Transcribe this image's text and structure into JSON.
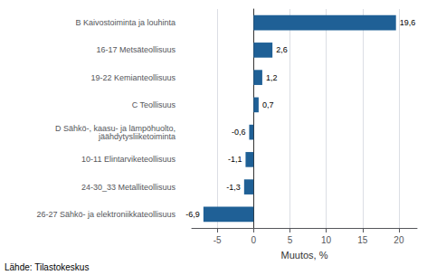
{
  "chart_data": {
    "type": "bar",
    "orientation": "horizontal",
    "categories": [
      "26-27 Sähkö- ja elektroniikkateollisuus",
      "24-30_33 Metalliteollisuus",
      "10-11 Elintarviketeollisuus",
      "D Sähkö-, kaasu- ja lämpöhuolto,\njäähdytysliiketoiminta",
      "C Teollisuus",
      "19-22 Kemianteollisuus",
      "16-17 Metsäteollisuus",
      "B Kaivostoiminta ja louhinta"
    ],
    "values": [
      -6.9,
      -1.3,
      -1.1,
      -0.6,
      0.7,
      1.2,
      2.6,
      19.6
    ],
    "value_labels": [
      "-6,9",
      "-1,3",
      "-1,1",
      "-0,6",
      "0,7",
      "1,2",
      "2,6",
      "19,6"
    ],
    "data_labels": true,
    "color": "#1f6096",
    "xlabel": "Muutos, %",
    "annotation": "Lähde: Tilastokeskus",
    "xlim": [
      -8.5,
      22.5
    ],
    "xticks": [
      -5,
      0,
      5,
      10,
      15,
      20
    ],
    "grid": true
  }
}
